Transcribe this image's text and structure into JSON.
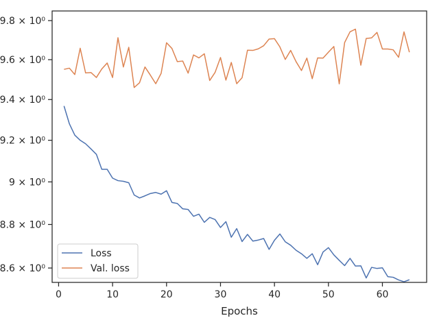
{
  "chart_data": {
    "type": "line",
    "title": "",
    "xlabel": "Epochs",
    "ylabel": "",
    "xlim": [
      -1.2,
      68.2
    ],
    "ylim": [
      8.535,
      9.85
    ],
    "y_scale": "log",
    "grid": false,
    "legend_position": "lower-left",
    "x_ticks": [
      0,
      10,
      20,
      30,
      40,
      50,
      60
    ],
    "x_tick_labels": [
      "0",
      "10",
      "20",
      "30",
      "40",
      "50",
      "60"
    ],
    "y_ticks": [
      8.6,
      8.8,
      9.0,
      9.2,
      9.4,
      9.6,
      9.8
    ],
    "y_tick_labels": [
      "8.6 × 10⁰",
      "8.8 × 10⁰",
      "9 × 10⁰",
      "9.2 × 10⁰",
      "9.4 × 10⁰",
      "9.6 × 10⁰",
      "9.8 × 10⁰"
    ],
    "x": [
      1,
      2,
      3,
      4,
      5,
      6,
      7,
      8,
      9,
      10,
      11,
      12,
      13,
      14,
      15,
      16,
      17,
      18,
      19,
      20,
      21,
      22,
      23,
      24,
      25,
      26,
      27,
      28,
      29,
      30,
      31,
      32,
      33,
      34,
      35,
      36,
      37,
      38,
      39,
      40,
      41,
      42,
      43,
      44,
      45,
      46,
      47,
      48,
      49,
      50,
      51,
      52,
      53,
      54,
      55,
      56,
      57,
      58,
      59,
      60,
      61,
      62,
      63,
      64,
      65
    ],
    "series": [
      {
        "name": "Loss",
        "color": "#4c72b0",
        "values": [
          9.368,
          9.28,
          9.225,
          9.2,
          9.183,
          9.158,
          9.132,
          9.06,
          9.06,
          9.018,
          9.006,
          9.003,
          8.996,
          8.938,
          8.924,
          8.934,
          8.945,
          8.95,
          8.942,
          8.958,
          8.903,
          8.898,
          8.873,
          8.87,
          8.838,
          8.848,
          8.81,
          8.833,
          8.823,
          8.786,
          8.813,
          8.741,
          8.781,
          8.721,
          8.754,
          8.723,
          8.728,
          8.735,
          8.685,
          8.727,
          8.756,
          8.72,
          8.704,
          8.681,
          8.665,
          8.644,
          8.665,
          8.615,
          8.673,
          8.693,
          8.66,
          8.635,
          8.611,
          8.644,
          8.609,
          8.61,
          8.555,
          8.603,
          8.598,
          8.601,
          8.561,
          8.558,
          8.546,
          8.538,
          8.547
        ]
      },
      {
        "name": "Val. loss",
        "color": "#dd8452",
        "values": [
          9.551,
          9.557,
          9.525,
          9.658,
          9.533,
          9.535,
          9.51,
          9.553,
          9.583,
          9.51,
          9.712,
          9.563,
          9.663,
          9.46,
          9.484,
          9.563,
          9.522,
          9.479,
          9.531,
          9.686,
          9.657,
          9.59,
          9.593,
          9.532,
          9.624,
          9.609,
          9.63,
          9.495,
          9.536,
          9.611,
          9.497,
          9.586,
          9.479,
          9.509,
          9.648,
          9.647,
          9.655,
          9.671,
          9.705,
          9.707,
          9.665,
          9.601,
          9.647,
          9.59,
          9.545,
          9.608,
          9.504,
          9.609,
          9.608,
          9.638,
          9.667,
          9.478,
          9.687,
          9.742,
          9.756,
          9.572,
          9.708,
          9.711,
          9.739,
          9.654,
          9.654,
          9.65,
          9.612,
          9.742,
          9.638
        ]
      }
    ]
  }
}
